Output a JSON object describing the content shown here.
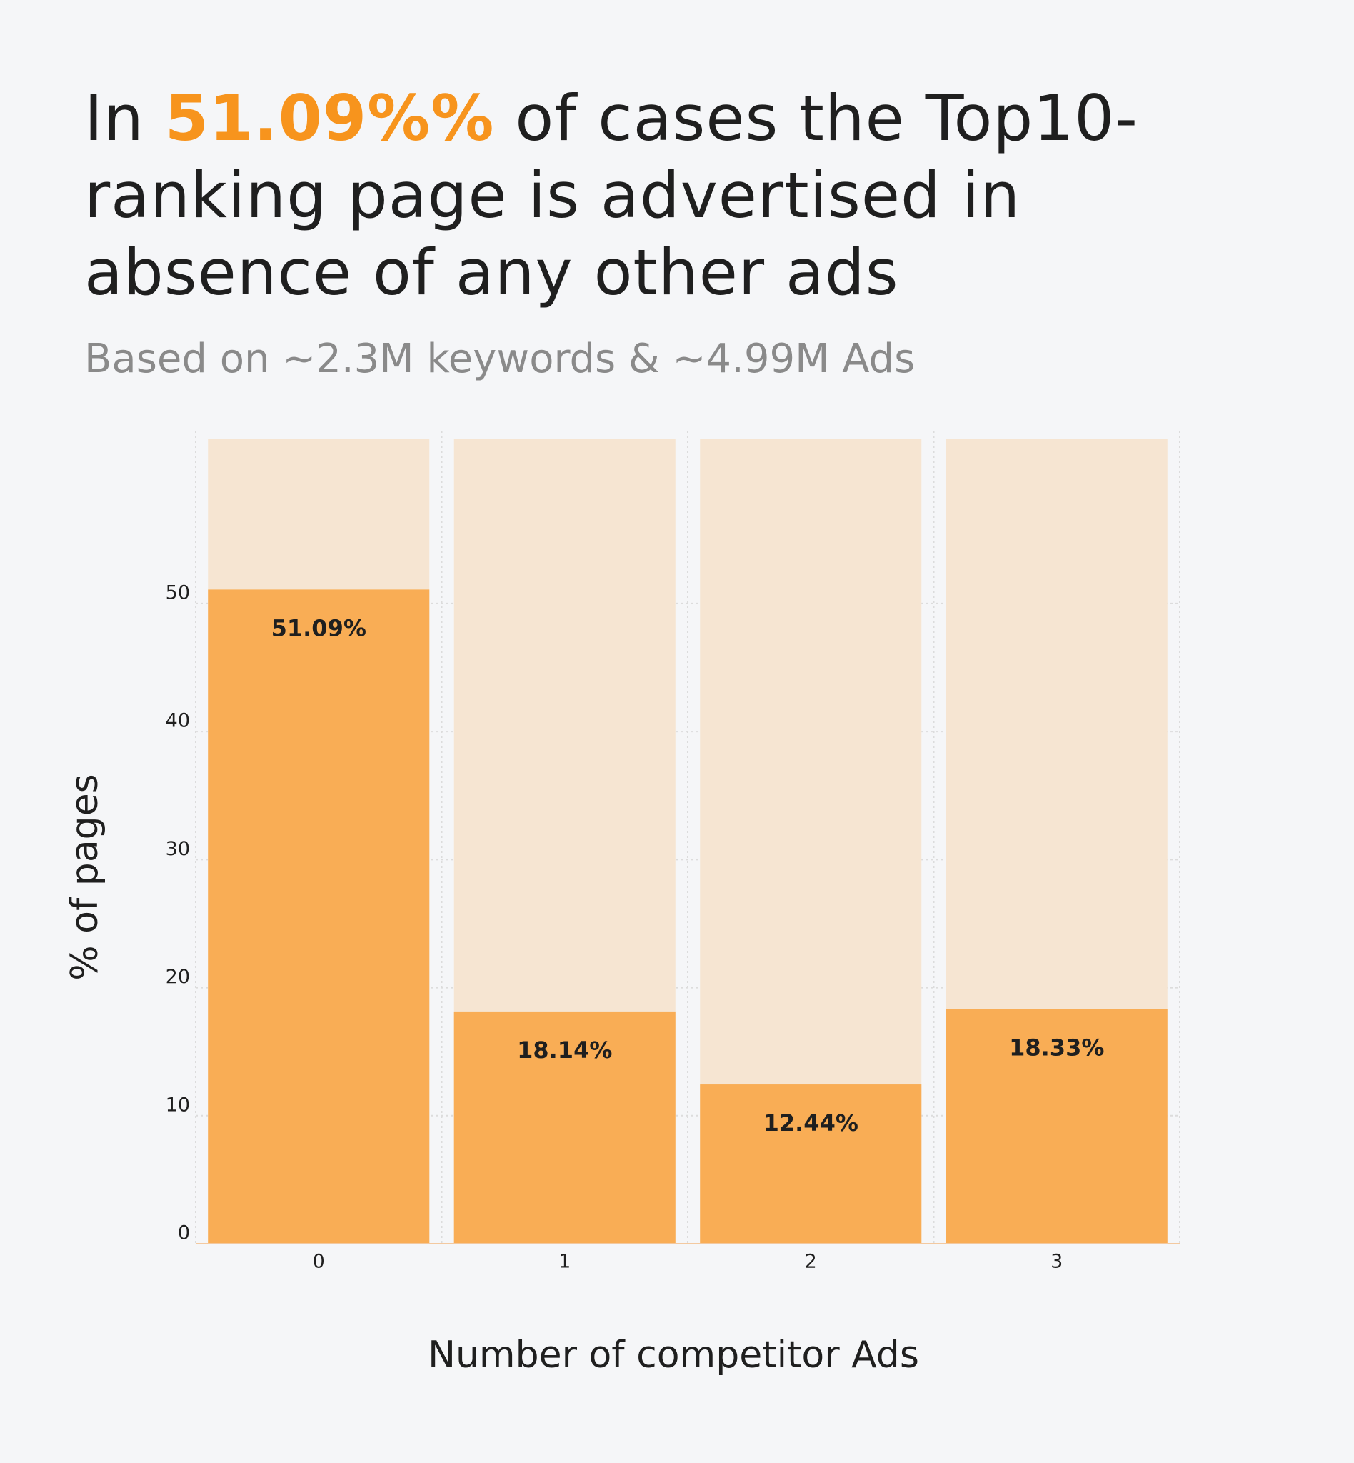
{
  "chart_data": {
    "type": "bar",
    "title": {
      "before": "In",
      "highlight": "51.09%%",
      "after": "of cases the Top10-ranking page is advertised in absence of any other ads"
    },
    "subtitle": "Based on ~2.3M keywords & ~4.99M Ads",
    "x_label": "Number of competitor Ads",
    "y_label": "% of pages",
    "categories": [
      "0",
      "1",
      "2",
      "3"
    ],
    "values": [
      51.09,
      18.14,
      12.44,
      18.33
    ],
    "value_labels": [
      "51.09%",
      "18.14%",
      "12.44%",
      "18.33%"
    ],
    "color": "#f9ad55",
    "ylim": [
      0,
      63.5
    ],
    "yticks": [
      0,
      10,
      20,
      30,
      40,
      50
    ],
    "grid": true
  }
}
